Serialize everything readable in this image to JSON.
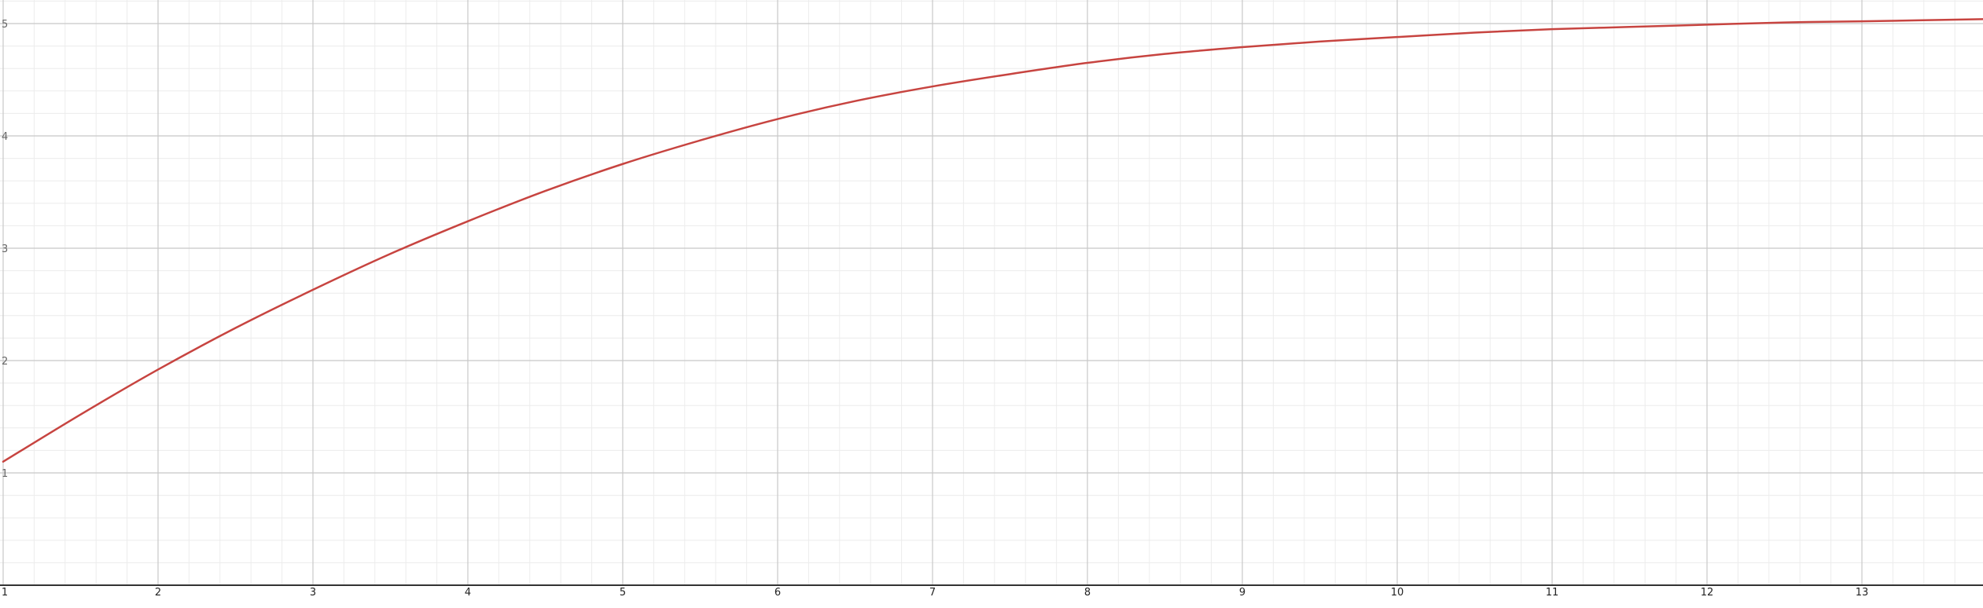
{
  "chart_data": {
    "type": "line",
    "title": "",
    "xlabel": "",
    "ylabel": "",
    "xlim": [
      1,
      13.8
    ],
    "ylim": [
      0,
      5.05
    ],
    "x_ticks": [
      1,
      2,
      3,
      4,
      5,
      6,
      7,
      8,
      9,
      10,
      11,
      12,
      13
    ],
    "x_tick_labels": [
      "1",
      "2",
      "3",
      "4",
      "5",
      "6",
      "7",
      "8",
      "9",
      "10",
      "11",
      "12",
      "13"
    ],
    "y_ticks": [
      1,
      2,
      3,
      4,
      5
    ],
    "y_tick_labels": [
      "1",
      "2",
      "3",
      "4",
      "5"
    ],
    "minor_grid_step": 0.2,
    "grid": true,
    "series": [
      {
        "color": "#c74440",
        "x": [
          1,
          1.5,
          2,
          2.5,
          3,
          3.5,
          4,
          4.5,
          5,
          5.5,
          6,
          6.5,
          7,
          7.5,
          8,
          8.5,
          9,
          9.5,
          10,
          10.5,
          11,
          11.5,
          12,
          12.5,
          13,
          13.8
        ],
        "y": [
          1.1,
          1.52,
          1.92,
          2.29,
          2.63,
          2.95,
          3.24,
          3.51,
          3.75,
          3.96,
          4.15,
          4.31,
          4.44,
          4.55,
          4.65,
          4.73,
          4.79,
          4.84,
          4.88,
          4.92,
          4.95,
          4.97,
          4.99,
          5.01,
          5.02,
          5.04
        ]
      }
    ]
  },
  "colors": {
    "background": "#ffffff",
    "major_grid": "#c8c8c8",
    "minor_grid": "#ececec",
    "axis": "#333333",
    "curve": "#c74440"
  }
}
